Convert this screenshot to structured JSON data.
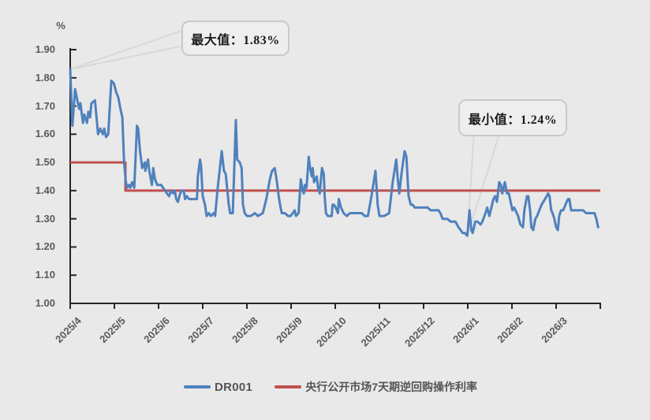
{
  "chart_data": {
    "type": "line",
    "title": "",
    "xlabel": "",
    "ylabel": "%",
    "ylim": [
      1.0,
      1.9
    ],
    "grid": false,
    "legend_position": "bottom-center",
    "y_ticks": [
      "1.00",
      "1.10",
      "1.20",
      "1.30",
      "1.40",
      "1.50",
      "1.60",
      "1.70",
      "1.80",
      "1.90"
    ],
    "x_ticks": [
      "2025/4",
      "2025/5",
      "2025/6",
      "2025/7",
      "2025/8",
      "2025/9",
      "2025/10",
      "2025/11",
      "2025/12",
      "2026/1",
      "2026/2",
      "2026/3"
    ],
    "colors": {
      "background": "#e9e9e9",
      "axis": "#262626",
      "tick_label": "#595959",
      "dr001": "#4f81bd",
      "policy": "#c0504d",
      "callout_border": "#c9c9c9",
      "callout_line": "#d8d8d8"
    },
    "series": [
      {
        "name": "DR001",
        "color": "#4f81bd",
        "x_unit": "months_since_2025_04",
        "points": [
          [
            0,
            1.83
          ],
          [
            0.05,
            1.63
          ],
          [
            0.11,
            1.76
          ],
          [
            0.2,
            1.69
          ],
          [
            0.23,
            1.71
          ],
          [
            0.29,
            1.64
          ],
          [
            0.32,
            1.67
          ],
          [
            0.38,
            1.64
          ],
          [
            0.41,
            1.68
          ],
          [
            0.45,
            1.66
          ],
          [
            0.48,
            1.71
          ],
          [
            0.56,
            1.72
          ],
          [
            0.63,
            1.6
          ],
          [
            0.68,
            1.62
          ],
          [
            0.74,
            1.6
          ],
          [
            0.77,
            1.62
          ],
          [
            0.81,
            1.59
          ],
          [
            0.86,
            1.6
          ],
          [
            0.93,
            1.79
          ],
          [
            0.99,
            1.78
          ],
          [
            1.04,
            1.75
          ],
          [
            1.09,
            1.73
          ],
          [
            1.15,
            1.68
          ],
          [
            1.18,
            1.66
          ],
          [
            1.22,
            1.5
          ],
          [
            1.26,
            1.43
          ],
          [
            1.29,
            1.41
          ],
          [
            1.33,
            1.42
          ],
          [
            1.36,
            1.41
          ],
          [
            1.4,
            1.43
          ],
          [
            1.45,
            1.41
          ],
          [
            1.51,
            1.63
          ],
          [
            1.54,
            1.62
          ],
          [
            1.58,
            1.54
          ],
          [
            1.63,
            1.48
          ],
          [
            1.69,
            1.5
          ],
          [
            1.7,
            1.47
          ],
          [
            1.76,
            1.51
          ],
          [
            1.79,
            1.47
          ],
          [
            1.85,
            1.42
          ],
          [
            1.88,
            1.48
          ],
          [
            1.92,
            1.44
          ],
          [
            1.97,
            1.42
          ],
          [
            2.01,
            1.42
          ],
          [
            2.06,
            1.42
          ],
          [
            2.1,
            1.41
          ],
          [
            2.15,
            1.4
          ],
          [
            2.19,
            1.39
          ],
          [
            2.24,
            1.38
          ],
          [
            2.28,
            1.4
          ],
          [
            2.33,
            1.39
          ],
          [
            2.37,
            1.4
          ],
          [
            2.4,
            1.37
          ],
          [
            2.44,
            1.36
          ],
          [
            2.49,
            1.39
          ],
          [
            2.53,
            1.4
          ],
          [
            2.57,
            1.4
          ],
          [
            2.6,
            1.37
          ],
          [
            2.64,
            1.38
          ],
          [
            2.69,
            1.37
          ],
          [
            2.73,
            1.37
          ],
          [
            2.78,
            1.37
          ],
          [
            2.82,
            1.37
          ],
          [
            2.87,
            1.37
          ],
          [
            2.89,
            1.45
          ],
          [
            2.94,
            1.51
          ],
          [
            2.96,
            1.49
          ],
          [
            3.0,
            1.38
          ],
          [
            3.05,
            1.35
          ],
          [
            3.09,
            1.31
          ],
          [
            3.14,
            1.32
          ],
          [
            3.18,
            1.31
          ],
          [
            3.25,
            1.32
          ],
          [
            3.28,
            1.31
          ],
          [
            3.34,
            1.41
          ],
          [
            3.43,
            1.54
          ],
          [
            3.48,
            1.47
          ],
          [
            3.52,
            1.46
          ],
          [
            3.59,
            1.35
          ],
          [
            3.62,
            1.32
          ],
          [
            3.68,
            1.32
          ],
          [
            3.75,
            1.65
          ],
          [
            3.78,
            1.51
          ],
          [
            3.84,
            1.5
          ],
          [
            3.88,
            1.48
          ],
          [
            3.91,
            1.35
          ],
          [
            3.95,
            1.32
          ],
          [
            4.0,
            1.31
          ],
          [
            4.09,
            1.31
          ],
          [
            4.18,
            1.32
          ],
          [
            4.25,
            1.31
          ],
          [
            4.36,
            1.32
          ],
          [
            4.44,
            1.37
          ],
          [
            4.52,
            1.44
          ],
          [
            4.57,
            1.47
          ],
          [
            4.63,
            1.48
          ],
          [
            4.68,
            1.43
          ],
          [
            4.72,
            1.38
          ],
          [
            4.75,
            1.35
          ],
          [
            4.79,
            1.32
          ],
          [
            4.86,
            1.32
          ],
          [
            4.93,
            1.31
          ],
          [
            4.99,
            1.31
          ],
          [
            5.04,
            1.32
          ],
          [
            5.08,
            1.33
          ],
          [
            5.11,
            1.31
          ],
          [
            5.17,
            1.32
          ],
          [
            5.22,
            1.44
          ],
          [
            5.26,
            1.4
          ],
          [
            5.29,
            1.39
          ],
          [
            5.31,
            1.42
          ],
          [
            5.35,
            1.41
          ],
          [
            5.4,
            1.52
          ],
          [
            5.43,
            1.48
          ],
          [
            5.47,
            1.45
          ],
          [
            5.49,
            1.48
          ],
          [
            5.52,
            1.43
          ],
          [
            5.58,
            1.45
          ],
          [
            5.61,
            1.41
          ],
          [
            5.65,
            1.39
          ],
          [
            5.67,
            1.43
          ],
          [
            5.7,
            1.48
          ],
          [
            5.74,
            1.46
          ],
          [
            5.76,
            1.38
          ],
          [
            5.79,
            1.32
          ],
          [
            5.83,
            1.31
          ],
          [
            5.87,
            1.31
          ],
          [
            5.92,
            1.31
          ],
          [
            5.94,
            1.35
          ],
          [
            5.97,
            1.35
          ],
          [
            6.01,
            1.34
          ],
          [
            6.06,
            1.32
          ],
          [
            6.08,
            1.37
          ],
          [
            6.13,
            1.34
          ],
          [
            6.19,
            1.32
          ],
          [
            6.26,
            1.31
          ],
          [
            6.33,
            1.32
          ],
          [
            6.42,
            1.32
          ],
          [
            6.51,
            1.32
          ],
          [
            6.6,
            1.32
          ],
          [
            6.67,
            1.31
          ],
          [
            6.74,
            1.31
          ],
          [
            6.82,
            1.38
          ],
          [
            6.91,
            1.47
          ],
          [
            6.96,
            1.35
          ],
          [
            7.0,
            1.31
          ],
          [
            7.05,
            1.31
          ],
          [
            7.11,
            1.31
          ],
          [
            7.22,
            1.32
          ],
          [
            7.3,
            1.43
          ],
          [
            7.38,
            1.51
          ],
          [
            7.41,
            1.45
          ],
          [
            7.45,
            1.39
          ],
          [
            7.5,
            1.46
          ],
          [
            7.57,
            1.54
          ],
          [
            7.61,
            1.52
          ],
          [
            7.66,
            1.38
          ],
          [
            7.71,
            1.35
          ],
          [
            7.75,
            1.35
          ],
          [
            7.8,
            1.34
          ],
          [
            7.86,
            1.34
          ],
          [
            7.91,
            1.34
          ],
          [
            7.97,
            1.34
          ],
          [
            8.04,
            1.34
          ],
          [
            8.09,
            1.34
          ],
          [
            8.16,
            1.33
          ],
          [
            8.22,
            1.33
          ],
          [
            8.27,
            1.33
          ],
          [
            8.34,
            1.33
          ],
          [
            8.38,
            1.32
          ],
          [
            8.43,
            1.3
          ],
          [
            8.48,
            1.3
          ],
          [
            8.54,
            1.3
          ],
          [
            8.61,
            1.29
          ],
          [
            8.66,
            1.29
          ],
          [
            8.72,
            1.29
          ],
          [
            8.79,
            1.27
          ],
          [
            8.84,
            1.26
          ],
          [
            8.88,
            1.25
          ],
          [
            8.93,
            1.25
          ],
          [
            8.99,
            1.24
          ],
          [
            9.04,
            1.33
          ],
          [
            9.08,
            1.26
          ],
          [
            9.11,
            1.25
          ],
          [
            9.17,
            1.29
          ],
          [
            9.22,
            1.29
          ],
          [
            9.29,
            1.28
          ],
          [
            9.33,
            1.29
          ],
          [
            9.4,
            1.32
          ],
          [
            9.44,
            1.34
          ],
          [
            9.49,
            1.31
          ],
          [
            9.58,
            1.37
          ],
          [
            9.62,
            1.38
          ],
          [
            9.66,
            1.36
          ],
          [
            9.71,
            1.43
          ],
          [
            9.75,
            1.42
          ],
          [
            9.78,
            1.39
          ],
          [
            9.84,
            1.43
          ],
          [
            9.89,
            1.39
          ],
          [
            9.93,
            1.39
          ],
          [
            9.97,
            1.36
          ],
          [
            10.01,
            1.33
          ],
          [
            10.05,
            1.34
          ],
          [
            10.08,
            1.33
          ],
          [
            10.14,
            1.31
          ],
          [
            10.19,
            1.28
          ],
          [
            10.25,
            1.27
          ],
          [
            10.28,
            1.33
          ],
          [
            10.34,
            1.38
          ],
          [
            10.37,
            1.38
          ],
          [
            10.41,
            1.33
          ],
          [
            10.44,
            1.27
          ],
          [
            10.48,
            1.26
          ],
          [
            10.53,
            1.3
          ],
          [
            10.57,
            1.31
          ],
          [
            10.62,
            1.33
          ],
          [
            10.67,
            1.35
          ],
          [
            10.75,
            1.37
          ],
          [
            10.82,
            1.39
          ],
          [
            10.85,
            1.38
          ],
          [
            10.89,
            1.33
          ],
          [
            10.92,
            1.32
          ],
          [
            10.96,
            1.3
          ],
          [
            11.0,
            1.27
          ],
          [
            11.04,
            1.26
          ],
          [
            11.07,
            1.31
          ],
          [
            11.11,
            1.33
          ],
          [
            11.16,
            1.33
          ],
          [
            11.21,
            1.35
          ],
          [
            11.27,
            1.37
          ],
          [
            11.3,
            1.37
          ],
          [
            11.34,
            1.33
          ],
          [
            11.39,
            1.33
          ],
          [
            11.47,
            1.33
          ],
          [
            11.54,
            1.33
          ],
          [
            11.61,
            1.33
          ],
          [
            11.68,
            1.32
          ],
          [
            11.73,
            1.32
          ],
          [
            11.8,
            1.32
          ],
          [
            11.87,
            1.32
          ],
          [
            11.91,
            1.3
          ],
          [
            11.95,
            1.27
          ]
        ]
      },
      {
        "name": "央行公开市场7天期逆回购操作利率",
        "color": "#c0504d",
        "x_unit": "months_since_2025_04",
        "points": [
          [
            0,
            1.5
          ],
          [
            1.25,
            1.5
          ],
          [
            1.25,
            1.4
          ],
          [
            12,
            1.4
          ]
        ]
      }
    ],
    "annotations": [
      {
        "label": "最大值：1.83%",
        "point_m": 0,
        "point_v": 1.83
      },
      {
        "label": "最小值：1.24%",
        "point_m": 8.99,
        "point_v": 1.24
      }
    ]
  }
}
